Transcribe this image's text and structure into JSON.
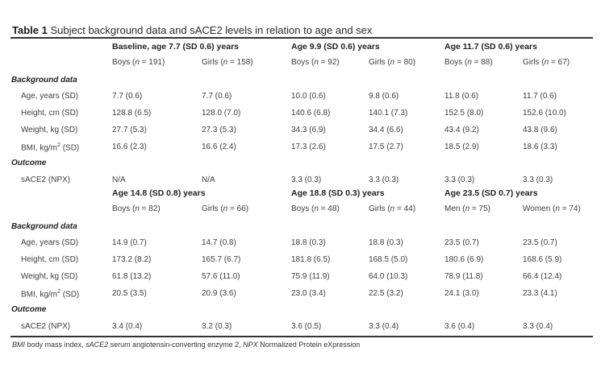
{
  "caption": {
    "label": "Table 1",
    "text": "Subject background data and sACE2 levels in relation to age and sex"
  },
  "footnote": {
    "a1": "BMI",
    "t1": " body mass index, ",
    "a2": "sACE2",
    "t2": " serum angiotensin-converting enzyme 2, ",
    "a3": "NPX",
    "t3": " Normalized Protein eXpression"
  },
  "labels": {
    "background": "Background data",
    "outcome": "Outcome",
    "age": "Age, years (SD)",
    "height": "Height, cm (SD)",
    "weight": "Weight, kg (SD)",
    "bmi_pre": "BMI, kg/m",
    "bmi_sup": "2",
    "bmi_post": " (SD)",
    "sace2": "sACE2 (NPX)"
  },
  "blocks": [
    {
      "groups": [
        "Baseline, age 7.7 (SD 0.6) years",
        "Age 9.9 (SD 0.6) years",
        "Age 11.7 (SD 0.6) years"
      ],
      "subgroups": [
        {
          "pre": "Boys (",
          "n": "n",
          "post": " = 191)"
        },
        {
          "pre": "Girls (",
          "n": "n",
          "post": " = 158)"
        },
        {
          "pre": "Boys (",
          "n": "n",
          "post": " = 92)"
        },
        {
          "pre": "Girls (",
          "n": "n",
          "post": " = 80)"
        },
        {
          "pre": "Boys (",
          "n": "n",
          "post": " = 88)"
        },
        {
          "pre": "Girls (",
          "n": "n",
          "post": " = 67)"
        }
      ],
      "age": [
        "7.7 (0.6)",
        "7.7 (0.6)",
        "10.0 (0.6)",
        "9.8 (0.6)",
        "11.8 (0.6)",
        "11.7 (0.6)"
      ],
      "height": [
        "128.8 (6.5)",
        "128.0 (7.0)",
        "140.6 (6.8)",
        "140.1 (7.3)",
        "152.5 (8.0)",
        "152.6 (10.0)"
      ],
      "weight": [
        "27.7 (5.3)",
        "27.3 (5.3)",
        "34.3 (6.9)",
        "34.4 (6.6)",
        "43.4 (9.2)",
        "43.8 (9.6)"
      ],
      "bmi": [
        "16.6 (2.3)",
        "16.6 (2.4)",
        "17.3 (2.6)",
        "17.5 (2.7)",
        "18.5 (2.9)",
        "18.6 (3.3)"
      ],
      "sace2": [
        "N/A",
        "N/A",
        "3.3 (0.3)",
        "3.3 (0.3)",
        "3.3 (0.3)",
        "3.3 (0.3)"
      ]
    },
    {
      "groups": [
        "Age 14.8 (SD 0.8) years",
        "Age 18.8 (SD 0.3) years",
        "Age 23.5 (SD 0.7) years"
      ],
      "subgroups": [
        {
          "pre": "Boys (",
          "n": "n",
          "post": " = 82)"
        },
        {
          "pre": "Girls (",
          "n": "n",
          "post": " = 66)"
        },
        {
          "pre": "Boys (",
          "n": "n",
          "post": " = 48)"
        },
        {
          "pre": "Girls (",
          "n": "n",
          "post": " = 44)"
        },
        {
          "pre": "Men (",
          "n": "n",
          "post": " = 75)"
        },
        {
          "pre": "Women (",
          "n": "n",
          "post": " = 74)"
        }
      ],
      "age": [
        "14.9 (0.7)",
        "14.7 (0.8)",
        "18.8 (0.3)",
        "18.8 (0.3)",
        "23.5 (0.7)",
        "23.5 (0.7)"
      ],
      "height": [
        "173.2 (8.2)",
        "165.7 (6.7)",
        "181.8 (6.5)",
        "168.5 (5.0)",
        "180.6 (6.9)",
        "168.6 (5.9)"
      ],
      "weight": [
        "61.8 (13.2)",
        "57.6 (11.0)",
        "75.9 (11.9)",
        "64.0 (10.3)",
        "78.9 (11.8)",
        "66.4 (12.4)"
      ],
      "bmi": [
        "20.5 (3.5)",
        "20.9 (3.6)",
        "23.0 (3.4)",
        "22.5 (3.2)",
        "24.1 (3.0)",
        "23.3 (4.1)"
      ],
      "sace2": [
        "3.4 (0.4)",
        "3.2 (0.3)",
        "3.6 (0.5)",
        "3.3 (0.4)",
        "3.6 (0.4)",
        "3.3 (0.4)"
      ]
    }
  ]
}
